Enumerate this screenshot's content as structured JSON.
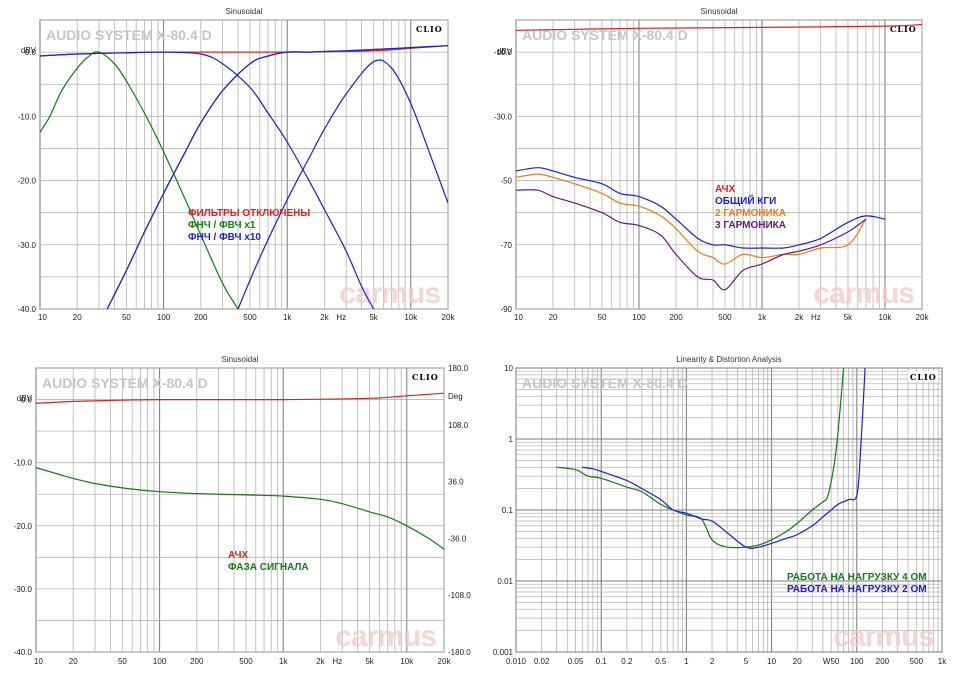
{
  "colors": {
    "red": "#e0201c",
    "green": "#167a16",
    "blue": "#1c1ce6",
    "orange": "#f07818",
    "purple": "#6a1a7a",
    "grid": "#b4b4b4",
    "gridMajor": "#787878",
    "watermark": "#f0bcbc"
  },
  "watermark": "carmus",
  "clio_logo": "CLIO",
  "panels": [
    {
      "id": "p1",
      "title": "Sinusoidal",
      "label": "AUDIO SYSTEM X-80.4 D",
      "unit_left": "dBV",
      "x_unit": "Hz",
      "x_ticks": [
        "10",
        "20",
        "50",
        "100",
        "200",
        "500",
        "1k",
        "2k",
        "5k",
        "10k",
        "20k"
      ],
      "y_ticks": [
        "0.0",
        "-10.0",
        "-20.0",
        "-30.0",
        "-40.0"
      ],
      "legend": [
        "ФИЛЬТРЫ ОТКЛЮЧЕНЫ",
        "ФНЧ / ФВЧ x1",
        "ФНЧ / ФВЧ x10"
      ]
    },
    {
      "id": "p2",
      "title": "Sinusoidal",
      "label": "AUDIO SYSTEM X-80.4 D",
      "unit_left": "dBV",
      "x_unit": "Hz",
      "x_ticks": [
        "10",
        "20",
        "50",
        "100",
        "200",
        "500",
        "1k",
        "2k",
        "5k",
        "10k",
        "20k"
      ],
      "y_ticks": [
        "-10.0",
        "-30.0",
        "-50",
        "-70",
        "-90"
      ],
      "legend": [
        "АЧХ",
        "ОБЩИЙ КГИ",
        "2 ГАРМОНИКА",
        "3 ГАРМОНИКА"
      ]
    },
    {
      "id": "p3",
      "title": "Sinusoidal",
      "label": "AUDIO SYSTEM X-80.4 D",
      "unit_left": "dBV",
      "unit_right": "Deg",
      "x_unit": "Hz",
      "x_ticks": [
        "10",
        "20",
        "50",
        "100",
        "200",
        "500",
        "1k",
        "2k",
        "5k",
        "10k",
        "20k"
      ],
      "y_ticks": [
        "0.0",
        "-10.0",
        "-20.0",
        "-30.0",
        "-40.0"
      ],
      "y2_ticks": [
        "180.0",
        "108.0",
        "36.0",
        "-36.0",
        "-108.0",
        "-180.0"
      ],
      "legend": [
        "АЧХ",
        "ФАЗА СИГНАЛА"
      ]
    },
    {
      "id": "p4",
      "title": "Linearity & Distortion Analysis",
      "label": "AUDIO SYSTEM X-80.4 D",
      "x_ticks": [
        "0.010",
        "0.02",
        "0.05",
        "0.1",
        "0.2",
        "0.5",
        "1",
        "2",
        "5",
        "10",
        "20",
        "W50",
        "100",
        "200",
        "500",
        "1k"
      ],
      "y_ticks": [
        "10",
        "1",
        "0.1",
        "0.01",
        "0.001"
      ],
      "legend": [
        "РАБОТА НА НАГРУЗКУ 4 ОМ",
        "РАБОТА НА НАГРУЗКУ 2 ОМ"
      ]
    }
  ],
  "chart_data": [
    {
      "type": "line",
      "title": "Sinusoidal",
      "subtitle": "AUDIO SYSTEM X-80.4 D",
      "xlabel": "Hz",
      "ylabel": "dBV",
      "x_scale": "log",
      "xlim": [
        10,
        20000
      ],
      "ylim": [
        -40,
        5
      ],
      "series": [
        {
          "name": "ФИЛЬТРЫ ОТКЛЮЧЕНЫ",
          "color": "red",
          "x": [
            10,
            20,
            50,
            100,
            1000,
            5000,
            10000,
            20000
          ],
          "y": [
            -0.6,
            -0.3,
            -0.1,
            0,
            0,
            0.2,
            0.6,
            1.0
          ]
        },
        {
          "name": "ФНЧ / ФВЧ x1",
          "color": "green",
          "x": [
            10,
            12,
            15,
            20,
            25,
            30,
            40,
            50,
            70,
            100,
            150,
            200,
            300,
            400
          ],
          "y": [
            -12.5,
            -10,
            -6,
            -2.5,
            -0.6,
            0,
            -1.8,
            -4.5,
            -9.5,
            -15.5,
            -23,
            -28.5,
            -36,
            -40
          ]
        },
        {
          "name": "ФНЧ / ФВЧ x1",
          "color": "green",
          "x": [
            35,
            50,
            70,
            100,
            150,
            200,
            300,
            500,
            700,
            1000,
            1500,
            2000,
            3000,
            5000,
            10000,
            20000
          ],
          "y": [
            -40,
            -34,
            -28,
            -22,
            -15.5,
            -11,
            -6,
            -1.8,
            -0.6,
            0,
            0,
            0.1,
            0.2,
            0.4,
            0.7,
            1.0
          ]
        },
        {
          "name": "ФНЧ / ФВЧ x10",
          "color": "blue",
          "x": [
            35,
            50,
            70,
            100,
            150,
            200,
            300,
            500,
            700,
            1000,
            1500,
            2000,
            3000,
            5000,
            10000,
            20000
          ],
          "y": [
            -40,
            -34,
            -28,
            -22,
            -15.5,
            -11,
            -6,
            -1.8,
            -0.6,
            0,
            0,
            0.1,
            0.2,
            0.4,
            0.7,
            1.0
          ]
        },
        {
          "name": "ФНЧ / ФВЧ x10",
          "color": "blue",
          "x": [
            10,
            20,
            50,
            100,
            200,
            300,
            500,
            700,
            1000,
            1500,
            2000,
            3000,
            4000,
            5000
          ],
          "y": [
            -0.6,
            -0.3,
            -0.1,
            0,
            -0.3,
            -1.8,
            -5.5,
            -9.5,
            -14,
            -20,
            -24.5,
            -31,
            -36.5,
            -40
          ]
        },
        {
          "name": "ФНЧ / ФВЧ x10",
          "color": "blue",
          "x": [
            400,
            600,
            1000,
            1500,
            2000,
            3000,
            5000,
            7000,
            10000,
            15000,
            20000
          ],
          "y": [
            -40,
            -32,
            -23,
            -16.5,
            -12,
            -6.5,
            -1.5,
            -2.5,
            -8,
            -17,
            -23.5
          ]
        }
      ]
    },
    {
      "type": "line",
      "title": "Sinusoidal",
      "subtitle": "AUDIO SYSTEM X-80.4 D",
      "xlabel": "Hz",
      "ylabel": "dBV",
      "x_scale": "log",
      "xlim": [
        10,
        20000
      ],
      "ylim": [
        -90,
        0
      ],
      "series": [
        {
          "name": "АЧХ",
          "color": "red",
          "x": [
            10,
            100,
            1000,
            10000,
            20000
          ],
          "y": [
            -3.2,
            -2.6,
            -2.3,
            -1.9,
            -1.4
          ]
        },
        {
          "name": "ОБЩИЙ КГИ",
          "color": "blue",
          "x": [
            10,
            15,
            20,
            30,
            50,
            70,
            100,
            150,
            200,
            300,
            400,
            500,
            700,
            1000,
            1500,
            2000,
            3000,
            5000,
            7000,
            10000
          ],
          "y": [
            -47,
            -46,
            -47,
            -49,
            -51,
            -54,
            -55,
            -58,
            -62,
            -68,
            -70,
            -70,
            -71,
            -71,
            -71,
            -70,
            -68,
            -63,
            -61,
            -62
          ]
        },
        {
          "name": "2 ГАРМОНИКА",
          "color": "orange",
          "x": [
            10,
            15,
            20,
            30,
            50,
            70,
            100,
            150,
            200,
            300,
            400,
            500,
            700,
            1000,
            1500,
            2000,
            3000,
            5000,
            7000
          ],
          "y": [
            -49,
            -48,
            -49,
            -51,
            -54,
            -57,
            -58,
            -61,
            -65,
            -72,
            -74,
            -76,
            -73,
            -74,
            -73,
            -73,
            -71,
            -70,
            -62
          ]
        },
        {
          "name": "3 ГАРМОНИКА",
          "color": "purple",
          "x": [
            10,
            15,
            20,
            30,
            50,
            70,
            100,
            150,
            200,
            300,
            400,
            500,
            700,
            1000,
            1500,
            2000,
            3000,
            5000,
            7000
          ],
          "y": [
            -53,
            -53,
            -55,
            -57,
            -60,
            -63,
            -64,
            -67,
            -73,
            -80,
            -81,
            -84,
            -78,
            -76,
            -73,
            -72,
            -70,
            -66,
            -62
          ]
        }
      ]
    },
    {
      "type": "line",
      "title": "Sinusoidal",
      "subtitle": "AUDIO SYSTEM X-80.4 D",
      "xlabel": "Hz",
      "ylabel": "dBV",
      "y2label": "Deg",
      "x_scale": "log",
      "xlim": [
        10,
        20000
      ],
      "ylim": [
        -40,
        5
      ],
      "y2lim": [
        -180,
        180
      ],
      "series": [
        {
          "name": "АЧХ",
          "color": "red",
          "x": [
            10,
            20,
            50,
            100,
            1000,
            5000,
            10000,
            20000
          ],
          "y": [
            -0.6,
            -0.3,
            -0.1,
            0,
            0,
            0.2,
            0.6,
            1.0
          ]
        },
        {
          "name": "ФАЗА СИГНАЛА",
          "color": "green",
          "x": [
            10,
            15,
            20,
            30,
            50,
            100,
            200,
            500,
            1000,
            2000,
            3000,
            5000,
            7000,
            10000,
            15000,
            20000
          ],
          "y": [
            -10.8,
            -11.8,
            -12.5,
            -13.3,
            -14,
            -14.6,
            -14.9,
            -15.1,
            -15.3,
            -15.8,
            -16.5,
            -17.8,
            -18.6,
            -20,
            -22,
            -23.7
          ]
        }
      ]
    },
    {
      "type": "line",
      "title": "Linearity & Distortion Analysis",
      "subtitle": "AUDIO SYSTEM X-80.4 D",
      "x_scale": "log",
      "y_scale": "log",
      "xlim": [
        0.01,
        1000
      ],
      "ylim": [
        0.001,
        10
      ],
      "series": [
        {
          "name": "РАБОТА НА НАГРУЗКУ 4 ОМ",
          "color": "green",
          "x": [
            0.03,
            0.05,
            0.07,
            0.1,
            0.2,
            0.3,
            0.5,
            0.7,
            1,
            1.5,
            2,
            3,
            5,
            7,
            10,
            15,
            20,
            30,
            40,
            45,
            50,
            55,
            60,
            70
          ],
          "y": [
            0.4,
            0.37,
            0.3,
            0.28,
            0.21,
            0.18,
            0.12,
            0.1,
            0.085,
            0.075,
            0.038,
            0.03,
            0.03,
            0.032,
            0.038,
            0.05,
            0.065,
            0.1,
            0.13,
            0.15,
            0.25,
            0.5,
            1.2,
            10
          ]
        },
        {
          "name": "РАБОТА НА НАГРУЗКУ 2 ОМ",
          "color": "blue",
          "x": [
            0.06,
            0.08,
            0.1,
            0.2,
            0.3,
            0.5,
            0.7,
            1,
            1.5,
            2,
            3,
            5,
            7,
            10,
            15,
            20,
            30,
            40,
            50,
            60,
            80,
            100,
            110,
            125
          ],
          "y": [
            0.4,
            0.38,
            0.35,
            0.26,
            0.2,
            0.14,
            0.1,
            0.09,
            0.075,
            0.07,
            0.048,
            0.03,
            0.03,
            0.034,
            0.04,
            0.045,
            0.06,
            0.08,
            0.1,
            0.12,
            0.14,
            0.16,
            0.6,
            10
          ]
        }
      ]
    }
  ]
}
